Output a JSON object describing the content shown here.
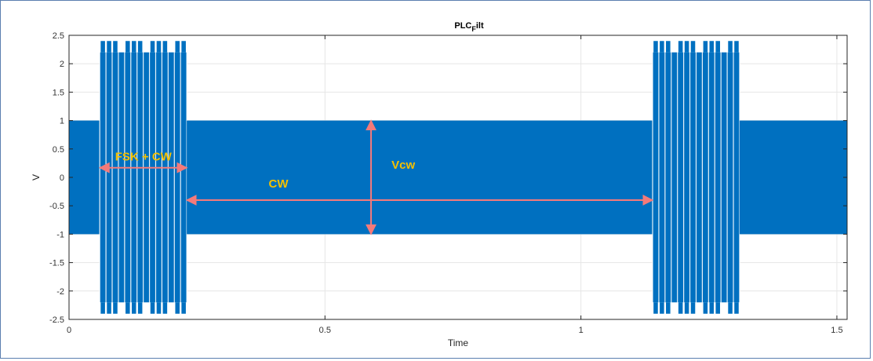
{
  "chart_data": {
    "type": "line",
    "title": "PLC",
    "title_subscript": "F",
    "title_suffix": "ilt",
    "xlabel": "Time",
    "ylabel": "V",
    "xlim": [
      0,
      1.52
    ],
    "ylim": [
      -2.5,
      2.5
    ],
    "xticks": [
      0,
      0.5,
      1,
      1.5
    ],
    "xtick_labels": [
      "0",
      "0.5",
      "1",
      "1.5"
    ],
    "yticks": [
      2.5,
      2,
      1.5,
      1,
      0.5,
      0,
      -0.5,
      -1,
      -1.5,
      -2,
      -2.5
    ],
    "ytick_labels": [
      "2.5",
      "2",
      "1.5",
      "1",
      "0.5",
      "0",
      "-0.5",
      "-1",
      "-1.5",
      "-2",
      "-2.5"
    ],
    "grid": true,
    "colors": {
      "signal": "#0070c0",
      "annotation_text": "#f5c000",
      "arrow": "#f47a7a"
    },
    "series": [
      {
        "segments": [
          {
            "type": "cw",
            "x_start": 0,
            "x_end": 0.06,
            "amplitude": 1
          },
          {
            "type": "fsk_cw",
            "x_start": 0.06,
            "x_end": 0.23,
            "amplitude": 2.2,
            "peak": 2.4
          },
          {
            "type": "cw",
            "x_start": 0.23,
            "x_end": 1.14,
            "amplitude": 1
          },
          {
            "type": "fsk_cw",
            "x_start": 1.14,
            "x_end": 1.31,
            "amplitude": 2.2,
            "peak": 2.4
          },
          {
            "type": "cw",
            "x_start": 1.31,
            "x_end": 1.52,
            "amplitude": 1
          }
        ]
      }
    ],
    "annotations": [
      {
        "text": "FSK + CW",
        "arrow": "horizontal",
        "x_from": 0.06,
        "x_to": 0.23,
        "y": 0.17,
        "text_x": 0.09,
        "text_y": 0.3
      },
      {
        "text": "CW",
        "arrow": "horizontal",
        "x_from": 0.23,
        "x_to": 1.14,
        "y": -0.4,
        "text_x": 0.39,
        "text_y": -0.18
      },
      {
        "text": "Vcw",
        "arrow": "vertical",
        "x": 0.59,
        "y_from": 1,
        "y_to": -1,
        "text_x": 0.63,
        "text_y": 0.15
      }
    ]
  }
}
